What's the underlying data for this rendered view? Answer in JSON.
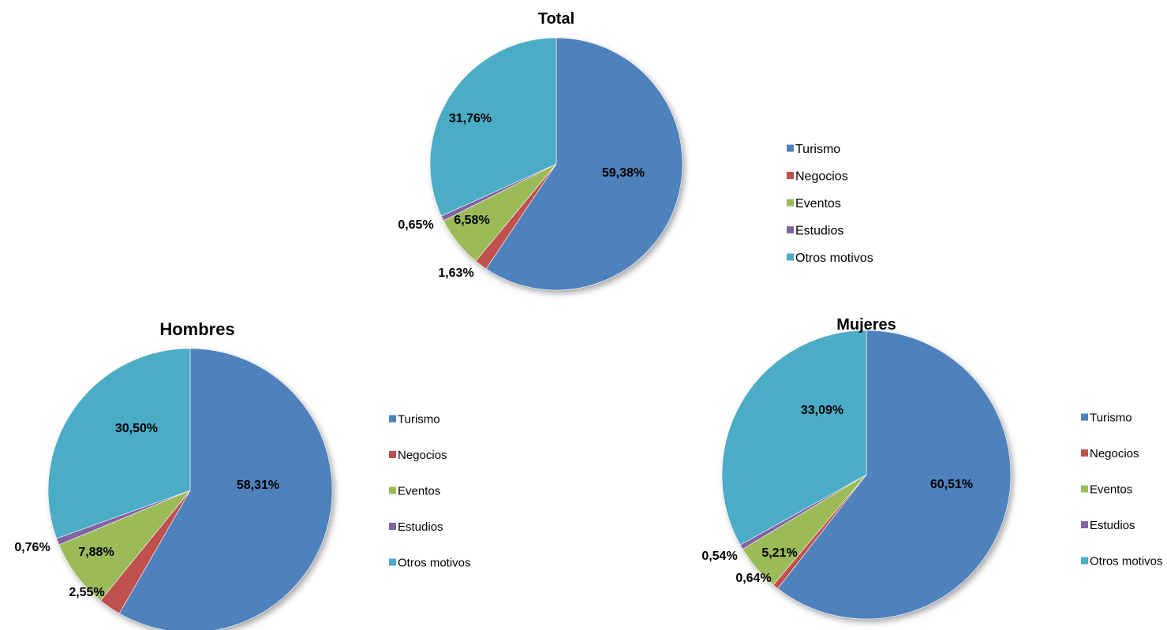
{
  "colors": {
    "Turismo": "#4f81bd",
    "Negocios": "#c0504d",
    "Eventos": "#9bbb59",
    "Estudios": "#8064a2",
    "Otros motivos": "#4bacc6"
  },
  "chart_data": [
    {
      "type": "pie",
      "title": "Total",
      "categories": [
        "Turismo",
        "Negocios",
        "Eventos",
        "Estudios",
        "Otros motivos"
      ],
      "values": [
        59.38,
        1.63,
        6.58,
        0.65,
        31.76
      ],
      "labels": [
        "59,38%",
        "1,63%",
        "6,58%",
        "0,65%",
        "31,76%"
      ],
      "legend": [
        "Turismo",
        "Negocios",
        "Eventos",
        "Estudios",
        "Otros motivos"
      ],
      "legend_position": "right"
    },
    {
      "type": "pie",
      "title": "Hombres",
      "categories": [
        "Turismo",
        "Negocios",
        "Eventos",
        "Estudios",
        "Otros motivos"
      ],
      "values": [
        58.31,
        2.55,
        7.88,
        0.76,
        30.5
      ],
      "labels": [
        "58,31%",
        "2,55%",
        "7,88%",
        "0,76%",
        "30,50%"
      ],
      "legend": [
        "Turismo",
        "Negocios",
        "Eventos",
        "Estudios",
        "Otros motivos"
      ],
      "legend_position": "right"
    },
    {
      "type": "pie",
      "title": "Mujeres",
      "categories": [
        "Turismo",
        "Negocios",
        "Eventos",
        "Estudios",
        "Otros motivos"
      ],
      "values": [
        60.51,
        0.64,
        5.21,
        0.54,
        33.09
      ],
      "labels": [
        "60,51%",
        "0,64%",
        "5,21%",
        "0,54%",
        "33,09%"
      ],
      "legend": [
        "Turismo",
        "Negocios",
        "Eventos",
        "Estudios",
        "Otros motivos"
      ],
      "legend_position": "right"
    }
  ]
}
